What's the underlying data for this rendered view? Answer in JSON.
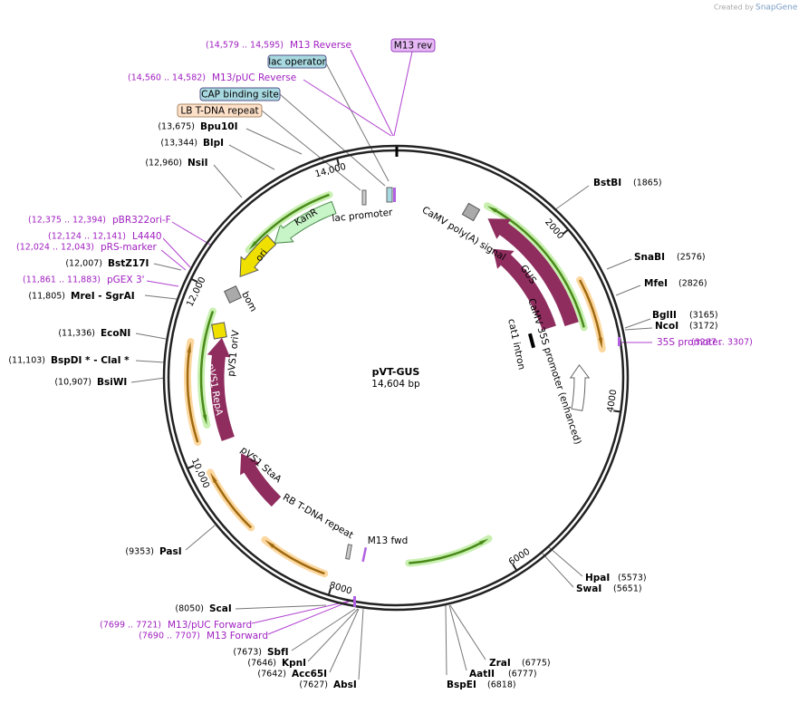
{
  "credit": {
    "text": "Created by",
    "brand": "SnapGene"
  },
  "map": {
    "name": "pVT-GUS",
    "length": "14,604 bp"
  },
  "ruler": [
    "14,000",
    "2000",
    "4000",
    "6000",
    "8000",
    "10,000",
    "12,000"
  ],
  "sites": [
    {
      "name": "Bpu10I",
      "position": "(13,675)"
    },
    {
      "name": "BlpI",
      "position": "(13,344)"
    },
    {
      "name": "NsiI",
      "position": "(12,960)"
    },
    {
      "name": "BstZ17I",
      "position": "(12,007)"
    },
    {
      "name": "MreI  - SgrAI",
      "position": "(11,805)"
    },
    {
      "name": "EcoNI",
      "position": "(11,336)"
    },
    {
      "name": "BspDI * - ClaI *",
      "position": "(11,103)"
    },
    {
      "name": "BsiWI",
      "position": "(10,907)"
    },
    {
      "name": "PasI",
      "position": "(9353)"
    },
    {
      "name": "ScaI",
      "position": "(8050)"
    },
    {
      "name": "SbfI",
      "position": "(7673)"
    },
    {
      "name": "KpnI",
      "position": "(7646)"
    },
    {
      "name": "Acc65I",
      "position": "(7642)"
    },
    {
      "name": "AbsI",
      "position": "(7627)"
    },
    {
      "name": "BstBI",
      "position": "(1865)"
    },
    {
      "name": "SnaBI",
      "position": "(2576)"
    },
    {
      "name": "MfeI",
      "position": "(2826)"
    },
    {
      "name": "BglII",
      "position": "(3165)"
    },
    {
      "name": "NcoI",
      "position": "(3172)"
    },
    {
      "name": "HpaI",
      "position": "(5573)"
    },
    {
      "name": "SwaI",
      "position": "(5651)"
    },
    {
      "name": "ZraI",
      "position": "(6775)"
    },
    {
      "name": "AatII",
      "position": "(6777)"
    },
    {
      "name": "BspEI",
      "position": "(6818)"
    }
  ],
  "primers": [
    {
      "name": "M13 Reverse",
      "range": "(14,579 .. 14,595)"
    },
    {
      "name": "M13/pUC Reverse",
      "range": "(14,560 .. 14,582)"
    },
    {
      "name": "pBR322ori-F",
      "range": "(12,375 .. 12,394)"
    },
    {
      "name": "L4440",
      "range": "(12,124 .. 12,141)"
    },
    {
      "name": "pRS-marker",
      "range": "(12,024 .. 12,043)"
    },
    {
      "name": "pGEX 3'",
      "range": "(11,861 .. 11,883)"
    },
    {
      "name": "35S promoter",
      "range": "(3287 .. 3307)"
    },
    {
      "name": "M13/pUC Forward",
      "range": "(7699 .. 7721)"
    },
    {
      "name": "M13 Forward",
      "range": "(7690 .. 7707)"
    }
  ],
  "boxed_features": [
    "M13 rev",
    "lac operator",
    "CAP binding site",
    "LB T-DNA repeat"
  ],
  "features": [
    "CaMV poly(A) signal",
    "GUS",
    "CaMV 35S promoter (enhanced)",
    "GUS",
    "cat1 intron",
    "KanR",
    "lac promoter",
    "ori",
    "bom",
    "pVS1 oriV",
    "pVS1 RepA",
    "pVS1 StaA",
    "RB T-DNA repeat",
    "M13 fwd"
  ]
}
